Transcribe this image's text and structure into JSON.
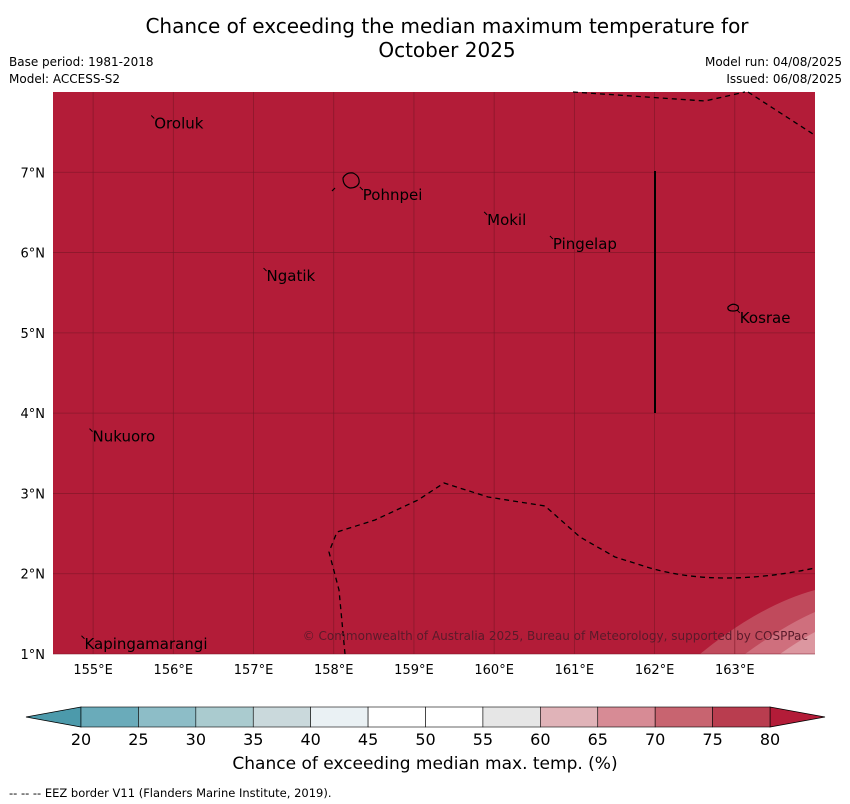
{
  "title_line1": "Chance of exceeding the median maximum temperature for",
  "title_line2": "October 2025",
  "meta": {
    "base_period": "Base period: 1981-2018",
    "model": "Model: ACCESS-S2",
    "model_run": "Model run: 04/08/2025",
    "issued": "Issued: 06/08/2025"
  },
  "map": {
    "lon_range": [
      154.5,
      164.0
    ],
    "lat_range": [
      1.0,
      8.0
    ],
    "fill_color": "#b31c38",
    "lon_ticks": [
      "155°E",
      "156°E",
      "157°E",
      "158°E",
      "159°E",
      "160°E",
      "161°E",
      "162°E",
      "163°E"
    ],
    "lat_ticks": [
      "1°N",
      "2°N",
      "3°N",
      "4°N",
      "5°N",
      "6°N",
      "7°N"
    ],
    "places": [
      {
        "name": "Oroluk",
        "lon": 155.75,
        "lat": 7.62
      },
      {
        "name": "Pohnpei",
        "lon": 158.35,
        "lat": 6.73
      },
      {
        "name": "Mokil",
        "lon": 159.9,
        "lat": 6.42
      },
      {
        "name": "Pingelap",
        "lon": 160.72,
        "lat": 6.12
      },
      {
        "name": "Ngatik",
        "lon": 157.15,
        "lat": 5.72
      },
      {
        "name": "Kosrae",
        "lon": 163.05,
        "lat": 5.2
      },
      {
        "name": "Nukuoro",
        "lon": 154.98,
        "lat": 3.72
      },
      {
        "name": "Kapingamarangi",
        "lon": 154.88,
        "lat": 1.14
      }
    ],
    "copyright": "© Commonwealth of Australia 2025, Bureau of Meteorology, supported by COSPPac"
  },
  "colorbar": {
    "labels": [
      "20",
      "25",
      "30",
      "35",
      "40",
      "45",
      "50",
      "55",
      "60",
      "65",
      "70",
      "75",
      "80"
    ],
    "colors": [
      "#6aabba",
      "#8dbdc7",
      "#aacbcf",
      "#cad9dc",
      "#eaf1f4",
      "#ffffff",
      "#ffffff",
      "#e6e6e6",
      "#e0b3b8",
      "#d78b95",
      "#c86470",
      "#b93d4f"
    ],
    "low_color": "#4c9aab",
    "high_color": "#b31c38",
    "label": "Chance of exceeding median max. temp. (%)"
  },
  "footer_note": "--  --  -- EEZ border V11 (Flanders Marine Institute, 2019)."
}
